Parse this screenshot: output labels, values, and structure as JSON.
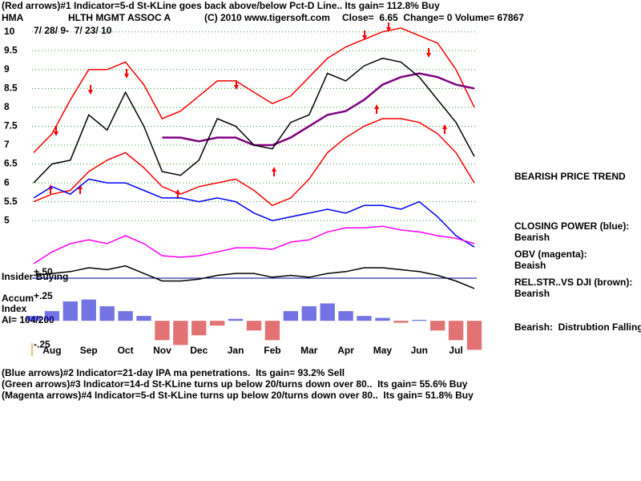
{
  "header": {
    "signal": "(Red arrows)#1 Indicator=5-d St-KLine goes back above/below Pct-D Line.. Its gain= 112.8% Buy",
    "symbol": "HMA",
    "company": "HLTH MGMT ASSOC A",
    "copyright": "(C) 2010 www.tigersoft.com",
    "quote": "Close=  6.65  Change= 0 Volume= 67867",
    "dates": "7/ 28/ 9-  7/ 23/ 10"
  },
  "side_notes": {
    "trend": "BEARISH PRICE TREND",
    "cp_title": "CLOSING POWER (blue):",
    "cp_value": "Bearish",
    "obv_title": "OBV (magenta):",
    "obv_value": "Beaish",
    "rs_title": "REL.STR..VS DJI (brown):",
    "rs_value": "Bearish",
    "ai_note": "Bearish:  Distrubtion Falling."
  },
  "left_labels": {
    "insider": "Insider Buying",
    "accum": "Accum",
    "index": "Index",
    "ai": "AI= 104/200"
  },
  "footer": [
    "(Blue arrows)#2 Indicator=21-day IPA ma penetrations.  Its gain= 93.2% Sell",
    "(Green arrows)#3 Indicator=14-d St-KLine turns up below 20/turns down over 80..  Its gain= 55.6% Buy",
    "(Magenta arrows)#4 Indicator=5-d St-KLine turns up below 20/turns down over 80..  Its gain= 51.8% Buy"
  ],
  "chart_data": [
    {
      "type": "line",
      "ylim": [
        1.5,
        10.1
      ],
      "yticks": [
        5,
        5.5,
        6,
        6.5,
        7,
        7.5,
        8,
        8.5,
        9,
        9.5,
        10
      ],
      "grid": true,
      "series": [
        {
          "color": "#ff0000",
          "values": [
            6.8,
            7.3,
            8.2,
            9.0,
            9.0,
            9.2,
            8.6,
            7.7,
            7.9,
            8.3,
            8.7,
            8.7,
            8.4,
            8.1,
            8.3,
            8.8,
            9.3,
            9.6,
            9.8,
            10.0,
            10.1,
            9.9,
            9.7,
            9.0,
            8.0
          ]
        },
        {
          "color": "#ff0000",
          "values": [
            5.5,
            5.7,
            5.8,
            6.3,
            6.6,
            6.8,
            6.4,
            5.9,
            5.7,
            5.9,
            6.0,
            6.1,
            5.8,
            5.4,
            5.6,
            6.1,
            6.8,
            7.2,
            7.5,
            7.7,
            7.7,
            7.6,
            7.3,
            6.8,
            6.0
          ]
        },
        {
          "color": "#800080",
          "values": [
            null,
            null,
            null,
            null,
            null,
            null,
            null,
            7.2,
            7.2,
            7.1,
            7.2,
            7.2,
            7.0,
            7.0,
            7.2,
            7.5,
            7.8,
            7.9,
            8.2,
            8.6,
            8.8,
            8.9,
            8.8,
            8.6,
            8.5
          ]
        },
        {
          "color": "#000000",
          "values": [
            6.0,
            6.5,
            6.6,
            7.8,
            7.4,
            8.4,
            7.5,
            6.3,
            6.2,
            6.6,
            7.7,
            7.5,
            7.0,
            6.9,
            7.6,
            7.8,
            8.9,
            8.7,
            9.1,
            9.3,
            9.2,
            8.8,
            8.2,
            7.6,
            6.7
          ]
        },
        {
          "color": "#0000ff",
          "values": [
            5.6,
            5.9,
            5.7,
            6.1,
            6.0,
            6.0,
            5.8,
            5.6,
            5.6,
            5.5,
            5.6,
            5.5,
            5.2,
            5.0,
            5.1,
            5.2,
            5.3,
            5.2,
            5.4,
            5.4,
            5.3,
            5.5,
            5.1,
            4.6,
            4.3
          ]
        },
        {
          "color": "#ff00ff",
          "values": [
            3.86,
            4.17,
            4.39,
            4.49,
            4.39,
            4.6,
            4.39,
            4.07,
            4.03,
            4.07,
            4.17,
            4.28,
            4.28,
            4.24,
            4.43,
            4.49,
            4.7,
            4.81,
            4.81,
            4.85,
            4.75,
            4.7,
            4.6,
            4.53,
            4.39
          ]
        },
        {
          "color": "#000000",
          "values": [
            3.55,
            3.6,
            3.65,
            3.75,
            3.7,
            3.8,
            3.6,
            3.4,
            3.4,
            3.45,
            3.55,
            3.6,
            3.6,
            3.5,
            3.55,
            3.5,
            3.6,
            3.65,
            3.75,
            3.75,
            3.7,
            3.65,
            3.55,
            3.4,
            3.2
          ]
        }
      ]
    },
    {
      "type": "bar",
      "ylim": [
        -0.33,
        0.54
      ],
      "yticks": [
        {
          "value": 0.5,
          "label": "+.50"
        },
        {
          "value": 0.25,
          "label": "+.25"
        },
        {
          "value": -0.25,
          "label": "-.25"
        }
      ],
      "categories": [
        null,
        "Aug",
        null,
        "Sep",
        null,
        "Oct",
        null,
        "Nov",
        null,
        "Dec",
        null,
        "Jan",
        null,
        "Feb",
        null,
        "Mar",
        null,
        "Apr",
        null,
        "May",
        null,
        "Jun",
        null,
        "Jul",
        null
      ],
      "color_up": "#0000cc",
      "color_down": "#cc0000",
      "values": [
        0.05,
        0.1,
        0.2,
        0.22,
        0.15,
        0.1,
        0.05,
        -0.2,
        -0.25,
        -0.15,
        -0.05,
        0.02,
        -0.1,
        -0.2,
        0.1,
        0.15,
        0.18,
        0.1,
        0.05,
        0.03,
        -0.02,
        0.01,
        -0.1,
        -0.2,
        -0.3
      ]
    }
  ]
}
